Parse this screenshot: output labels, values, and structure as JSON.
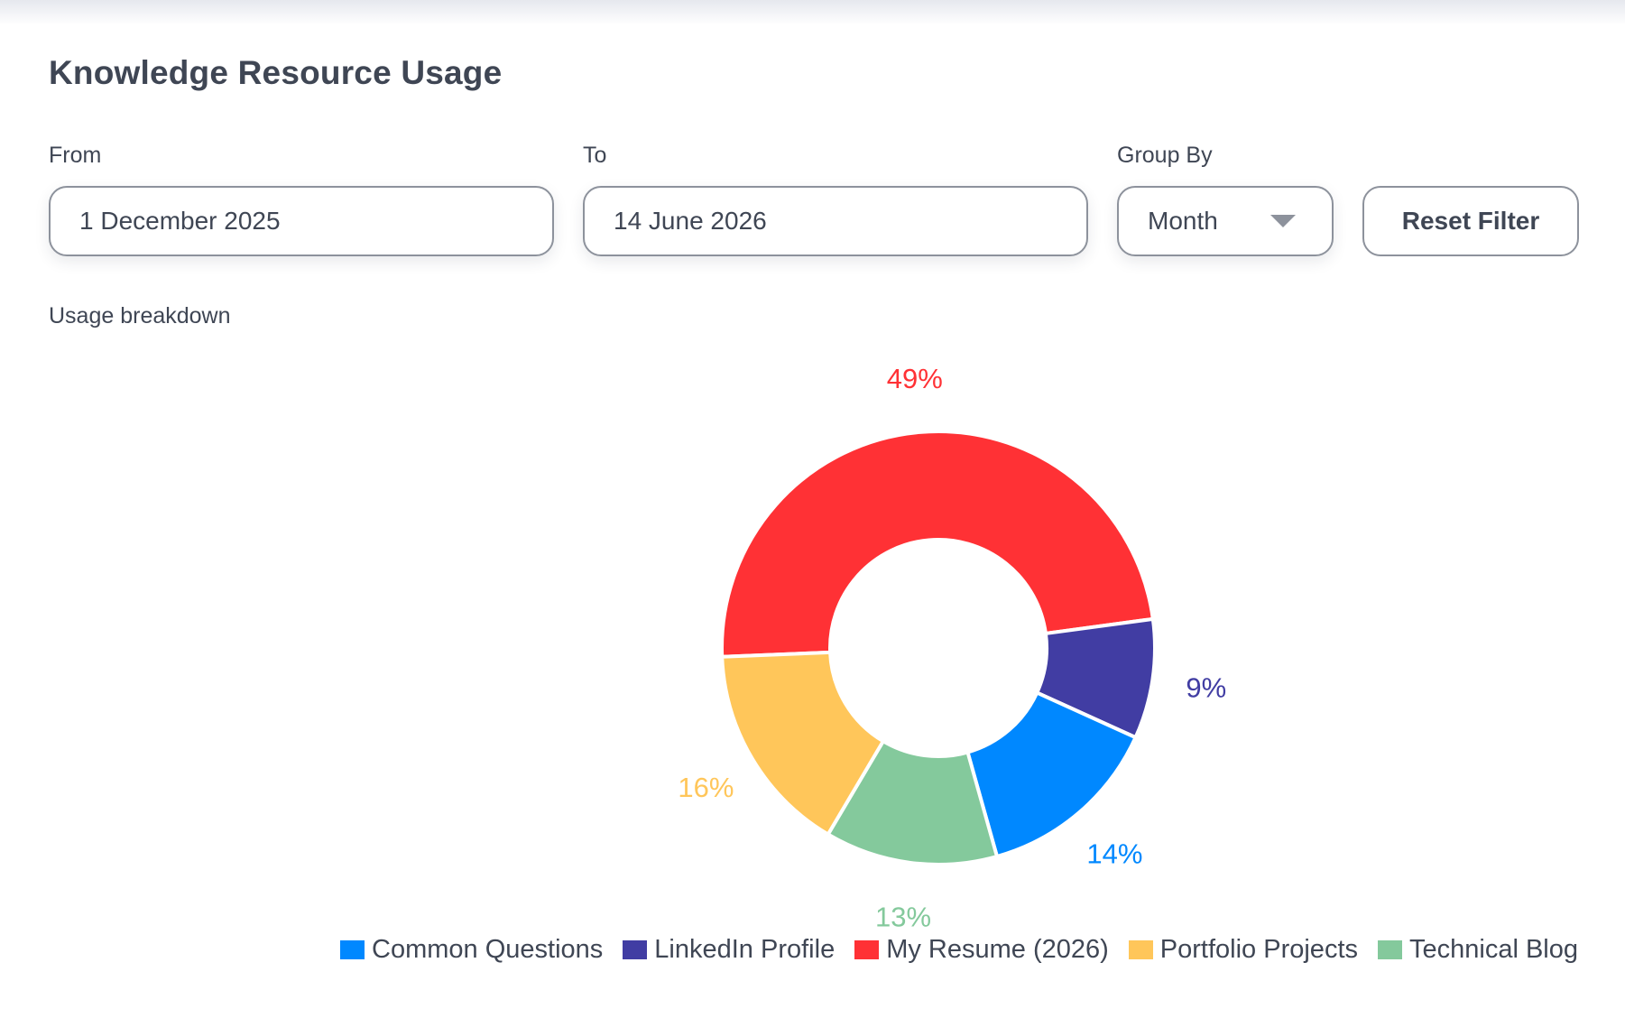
{
  "page": {
    "title": "Knowledge Resource Usage",
    "subtitle": "Usage breakdown"
  },
  "filters": {
    "from": {
      "label": "From",
      "value": "1 December 2025"
    },
    "to": {
      "label": "To",
      "value": "14 June 2026"
    },
    "group_by": {
      "label": "Group By",
      "value": "Month"
    },
    "reset_label": "Reset Filter"
  },
  "chart_data": {
    "type": "pie",
    "donut": true,
    "title": "",
    "legend_position": "bottom-right",
    "slices": [
      {
        "name": "Common Questions",
        "value": 14,
        "label": "14%",
        "color": "#0088ff"
      },
      {
        "name": "LinkedIn Profile",
        "value": 9,
        "label": "9%",
        "color": "#413da3"
      },
      {
        "name": "My Resume (2026)",
        "value": 49,
        "label": "49%",
        "color": "#ff3135"
      },
      {
        "name": "Portfolio Projects",
        "value": 16,
        "label": "16%",
        "color": "#ffc65a"
      },
      {
        "name": "Technical Blog",
        "value": 13,
        "label": "13%",
        "color": "#84c99c"
      }
    ],
    "draw_order": [
      "My Resume (2026)",
      "LinkedIn Profile",
      "Common Questions",
      "Technical Blog",
      "Portfolio Projects"
    ]
  }
}
